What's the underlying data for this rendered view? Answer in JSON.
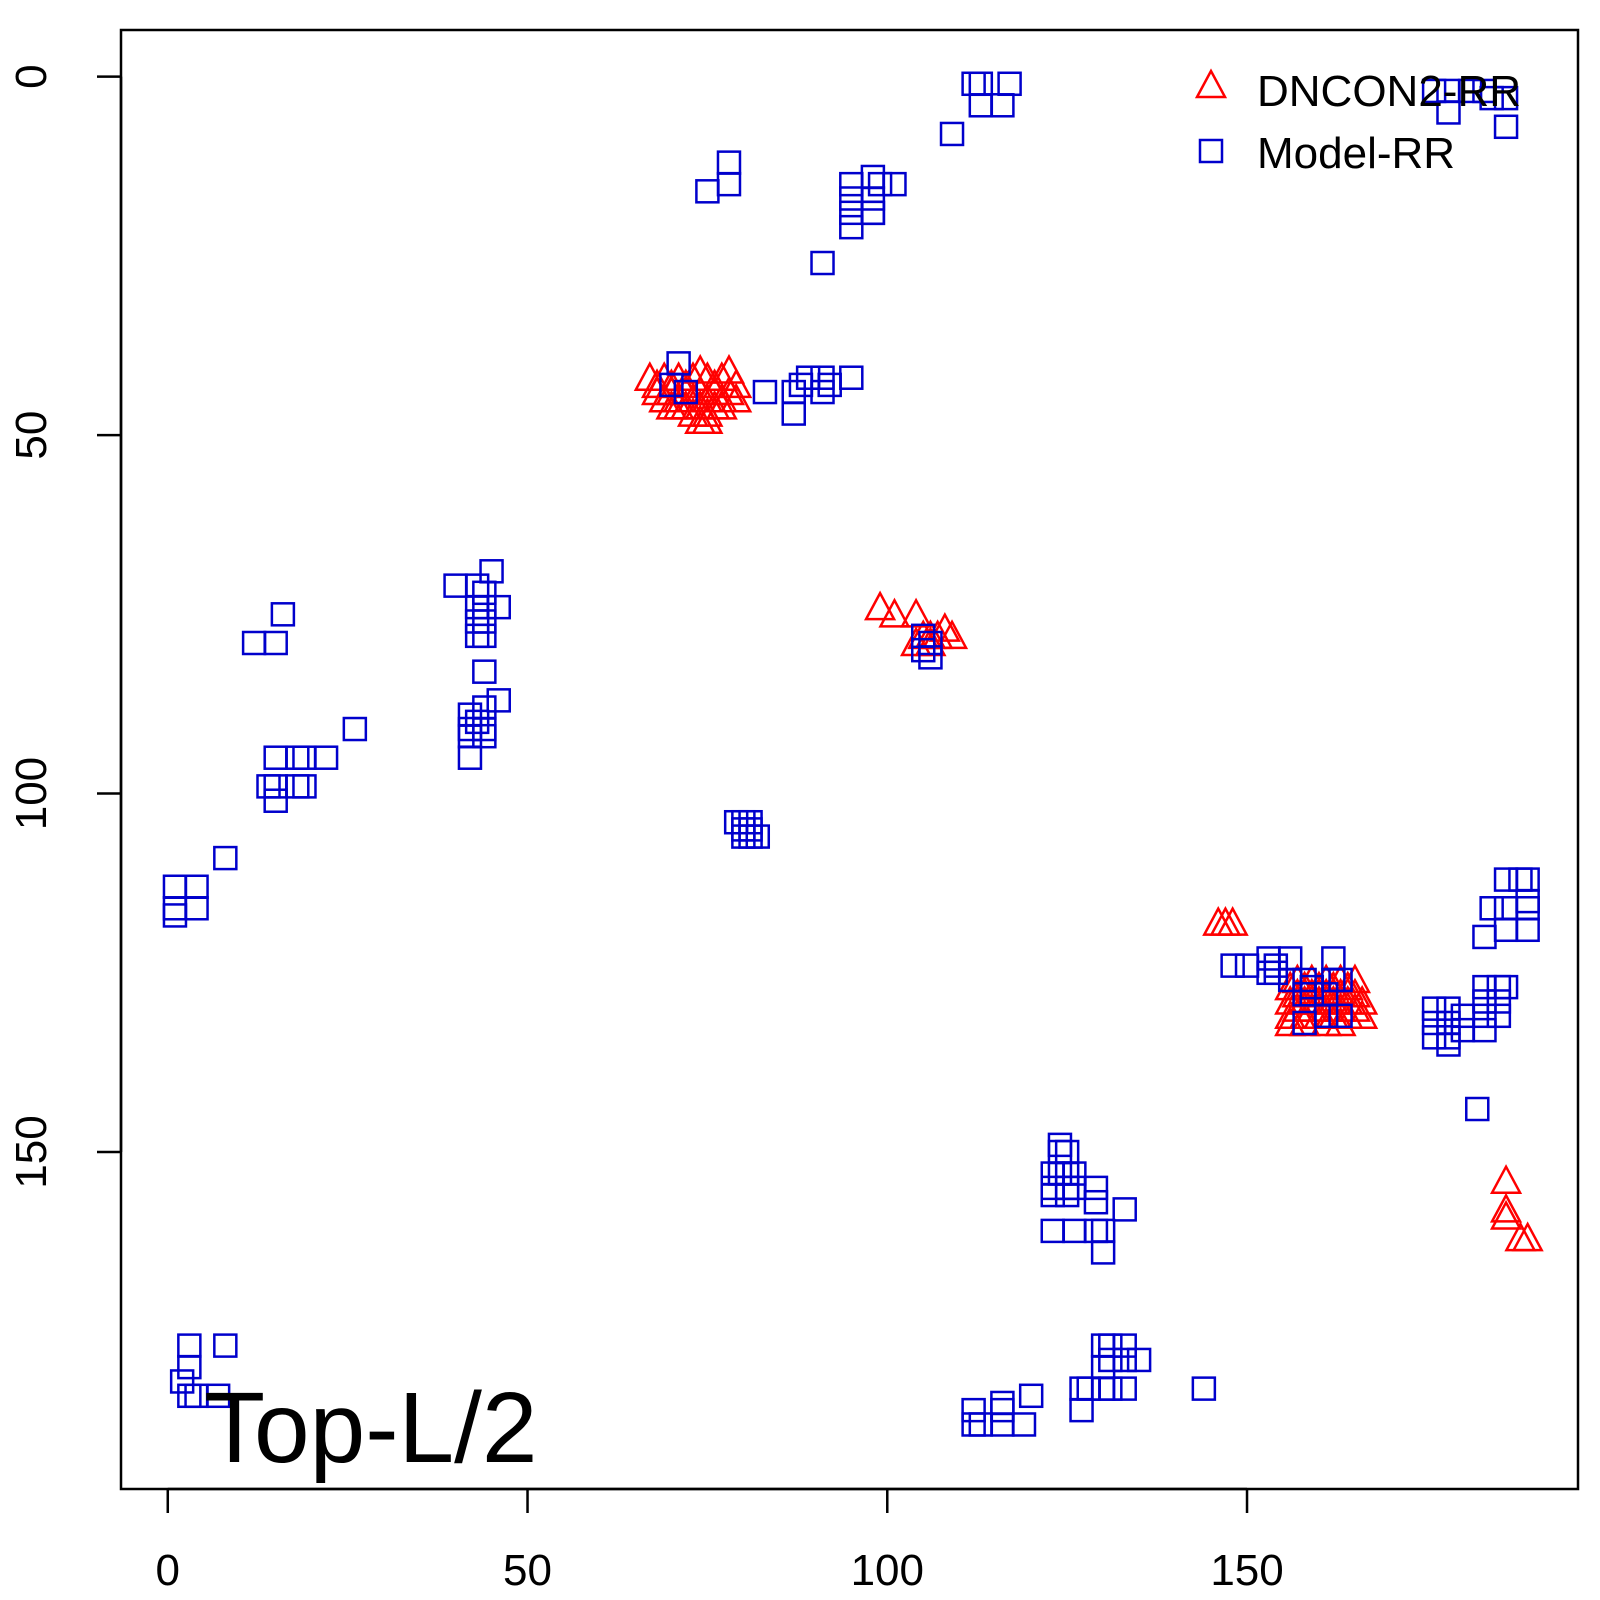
{
  "chart_data": {
    "type": "scatter",
    "title": "",
    "xlabel": "",
    "ylabel": "",
    "annotation": "Top-L/2",
    "xlim": [
      -6.5,
      196
    ],
    "ylim": [
      -6.5,
      197
    ],
    "y_inverted": true,
    "x_ticks": [
      0,
      50,
      100,
      150
    ],
    "y_ticks": [
      0,
      50,
      100,
      150
    ],
    "legend_position": "top-right",
    "series": [
      {
        "name": "DNCON2-RR",
        "marker": "triangle",
        "color": "#ff0000",
        "points": [
          [
            67,
            42
          ],
          [
            68,
            43
          ],
          [
            69,
            42
          ],
          [
            70,
            43
          ],
          [
            71,
            42
          ],
          [
            72,
            43
          ],
          [
            73,
            42
          ],
          [
            74,
            41
          ],
          [
            75,
            42
          ],
          [
            76,
            43
          ],
          [
            77,
            42
          ],
          [
            78,
            41
          ],
          [
            79,
            43
          ],
          [
            68,
            44
          ],
          [
            69,
            45
          ],
          [
            70,
            44
          ],
          [
            71,
            45
          ],
          [
            72,
            44
          ],
          [
            73,
            45
          ],
          [
            74,
            44
          ],
          [
            75,
            45
          ],
          [
            76,
            44
          ],
          [
            77,
            45
          ],
          [
            78,
            44
          ],
          [
            79,
            45
          ],
          [
            70,
            46
          ],
          [
            71,
            46
          ],
          [
            72,
            46
          ],
          [
            73,
            47
          ],
          [
            74,
            46
          ],
          [
            75,
            47
          ],
          [
            76,
            46
          ],
          [
            77,
            46
          ],
          [
            74,
            48
          ],
          [
            75,
            48
          ],
          [
            99,
            74
          ],
          [
            101,
            75
          ],
          [
            104,
            75
          ],
          [
            105,
            78
          ],
          [
            106,
            78
          ],
          [
            107,
            78
          ],
          [
            108,
            77
          ],
          [
            109,
            78
          ],
          [
            104,
            79
          ],
          [
            106,
            79
          ],
          [
            146,
            118
          ],
          [
            147,
            118
          ],
          [
            148,
            118
          ],
          [
            156,
            127
          ],
          [
            157,
            126
          ],
          [
            158,
            127
          ],
          [
            159,
            126
          ],
          [
            160,
            127
          ],
          [
            161,
            126
          ],
          [
            162,
            127
          ],
          [
            163,
            126
          ],
          [
            164,
            127
          ],
          [
            165,
            126
          ],
          [
            156,
            129
          ],
          [
            157,
            128
          ],
          [
            158,
            129
          ],
          [
            159,
            128
          ],
          [
            160,
            129
          ],
          [
            161,
            128
          ],
          [
            162,
            129
          ],
          [
            163,
            128
          ],
          [
            164,
            129
          ],
          [
            165,
            128
          ],
          [
            156,
            131
          ],
          [
            157,
            130
          ],
          [
            158,
            131
          ],
          [
            159,
            130
          ],
          [
            160,
            131
          ],
          [
            161,
            130
          ],
          [
            162,
            131
          ],
          [
            163,
            130
          ],
          [
            164,
            131
          ],
          [
            165,
            130
          ],
          [
            156,
            132
          ],
          [
            158,
            132
          ],
          [
            161,
            132
          ],
          [
            163,
            132
          ],
          [
            166,
            129
          ],
          [
            166,
            131
          ],
          [
            186,
            154
          ],
          [
            186,
            158
          ],
          [
            186,
            159
          ],
          [
            188,
            162
          ],
          [
            189,
            162
          ]
        ]
      },
      {
        "name": "Model-RR",
        "marker": "square",
        "color": "#0000cc",
        "points": [
          [
            112,
            1
          ],
          [
            113,
            1
          ],
          [
            117,
            1
          ],
          [
            113,
            4
          ],
          [
            116,
            4
          ],
          [
            109,
            8
          ],
          [
            78,
            12
          ],
          [
            78,
            15
          ],
          [
            75,
            16
          ],
          [
            95,
            15
          ],
          [
            98,
            14
          ],
          [
            99,
            15
          ],
          [
            101,
            15
          ],
          [
            95,
            17
          ],
          [
            98,
            17
          ],
          [
            95,
            19
          ],
          [
            98,
            19
          ],
          [
            95,
            21
          ],
          [
            98,
            19
          ],
          [
            91,
            26
          ],
          [
            71,
            40
          ],
          [
            70,
            43
          ],
          [
            72,
            44
          ],
          [
            83,
            44
          ],
          [
            87,
            44
          ],
          [
            88,
            43
          ],
          [
            89,
            42
          ],
          [
            91,
            42
          ],
          [
            92,
            43
          ],
          [
            95,
            42
          ],
          [
            91,
            44
          ],
          [
            87,
            47
          ],
          [
            176,
            2
          ],
          [
            178,
            2
          ],
          [
            181,
            2
          ],
          [
            183,
            2
          ],
          [
            184,
            3
          ],
          [
            186,
            3
          ],
          [
            178,
            5
          ],
          [
            186,
            7
          ],
          [
            40,
            71
          ],
          [
            43,
            71
          ],
          [
            45,
            69
          ],
          [
            44,
            72
          ],
          [
            43,
            74
          ],
          [
            44,
            74
          ],
          [
            46,
            74
          ],
          [
            43,
            76
          ],
          [
            44,
            76
          ],
          [
            43,
            78
          ],
          [
            44,
            78
          ],
          [
            16,
            75
          ],
          [
            12,
            79
          ],
          [
            15,
            79
          ],
          [
            44,
            83
          ],
          [
            46,
            87
          ],
          [
            44,
            88
          ],
          [
            42,
            89
          ],
          [
            43,
            90
          ],
          [
            42,
            91
          ],
          [
            44,
            91
          ],
          [
            42,
            92
          ],
          [
            44,
            92
          ],
          [
            42,
            95
          ],
          [
            26,
            91
          ],
          [
            15,
            95
          ],
          [
            18,
            95
          ],
          [
            19,
            95
          ],
          [
            22,
            95
          ],
          [
            14,
            99
          ],
          [
            15,
            99
          ],
          [
            18,
            99
          ],
          [
            19,
            99
          ],
          [
            15,
            101
          ],
          [
            105,
            78
          ],
          [
            106,
            79
          ],
          [
            105,
            80
          ],
          [
            106,
            81
          ],
          [
            79,
            104
          ],
          [
            80,
            104
          ],
          [
            81,
            104
          ],
          [
            80,
            105
          ],
          [
            81,
            105
          ],
          [
            80,
            106
          ],
          [
            81,
            106
          ],
          [
            82,
            106
          ],
          [
            8,
            109
          ],
          [
            1,
            113
          ],
          [
            4,
            113
          ],
          [
            1,
            116
          ],
          [
            4,
            116
          ],
          [
            1,
            117
          ],
          [
            186,
            112
          ],
          [
            188,
            112
          ],
          [
            189,
            112
          ],
          [
            189,
            115
          ],
          [
            184,
            116
          ],
          [
            186,
            116
          ],
          [
            189,
            116
          ],
          [
            186,
            119
          ],
          [
            189,
            119
          ],
          [
            183,
            120
          ],
          [
            148,
            124
          ],
          [
            150,
            124
          ],
          [
            153,
            123
          ],
          [
            154,
            124
          ],
          [
            156,
            123
          ],
          [
            153,
            125
          ],
          [
            154,
            125
          ],
          [
            162,
            123
          ],
          [
            156,
            126
          ],
          [
            158,
            126
          ],
          [
            159,
            127
          ],
          [
            162,
            126
          ],
          [
            163,
            126
          ],
          [
            158,
            128
          ],
          [
            159,
            128
          ],
          [
            161,
            128
          ],
          [
            158,
            132
          ],
          [
            161,
            131
          ],
          [
            163,
            131
          ],
          [
            176,
            130
          ],
          [
            178,
            130
          ],
          [
            180,
            131
          ],
          [
            176,
            132
          ],
          [
            178,
            132
          ],
          [
            180,
            133
          ],
          [
            176,
            134
          ],
          [
            178,
            134
          ],
          [
            178,
            135
          ],
          [
            183,
            127
          ],
          [
            185,
            127
          ],
          [
            186,
            127
          ],
          [
            183,
            129
          ],
          [
            185,
            129
          ],
          [
            183,
            131
          ],
          [
            185,
            131
          ],
          [
            183,
            133
          ],
          [
            182,
            144
          ],
          [
            124,
            149
          ],
          [
            124,
            150
          ],
          [
            125,
            150
          ],
          [
            123,
            153
          ],
          [
            124,
            153
          ],
          [
            125,
            153
          ],
          [
            126,
            153
          ],
          [
            123,
            155
          ],
          [
            125,
            155
          ],
          [
            126,
            155
          ],
          [
            123,
            156
          ],
          [
            125,
            156
          ],
          [
            129,
            155
          ],
          [
            129,
            157
          ],
          [
            133,
            158
          ],
          [
            123,
            161
          ],
          [
            126,
            161
          ],
          [
            129,
            161
          ],
          [
            130,
            161
          ],
          [
            130,
            164
          ],
          [
            130,
            177
          ],
          [
            131,
            177
          ],
          [
            133,
            177
          ],
          [
            131,
            179
          ],
          [
            133,
            179
          ],
          [
            135,
            179
          ],
          [
            130,
            180
          ],
          [
            127,
            183
          ],
          [
            128,
            183
          ],
          [
            130,
            183
          ],
          [
            131,
            183
          ],
          [
            133,
            183
          ],
          [
            144,
            183
          ],
          [
            127,
            186
          ],
          [
            120,
            184
          ],
          [
            112,
            186
          ],
          [
            112,
            188
          ],
          [
            113,
            188
          ],
          [
            116,
            186
          ],
          [
            116,
            188
          ],
          [
            119,
            188
          ],
          [
            116,
            185
          ],
          [
            3,
            177
          ],
          [
            8,
            177
          ],
          [
            3,
            180
          ],
          [
            2,
            182
          ],
          [
            3,
            184
          ],
          [
            4,
            184
          ],
          [
            7,
            184
          ]
        ]
      }
    ]
  }
}
